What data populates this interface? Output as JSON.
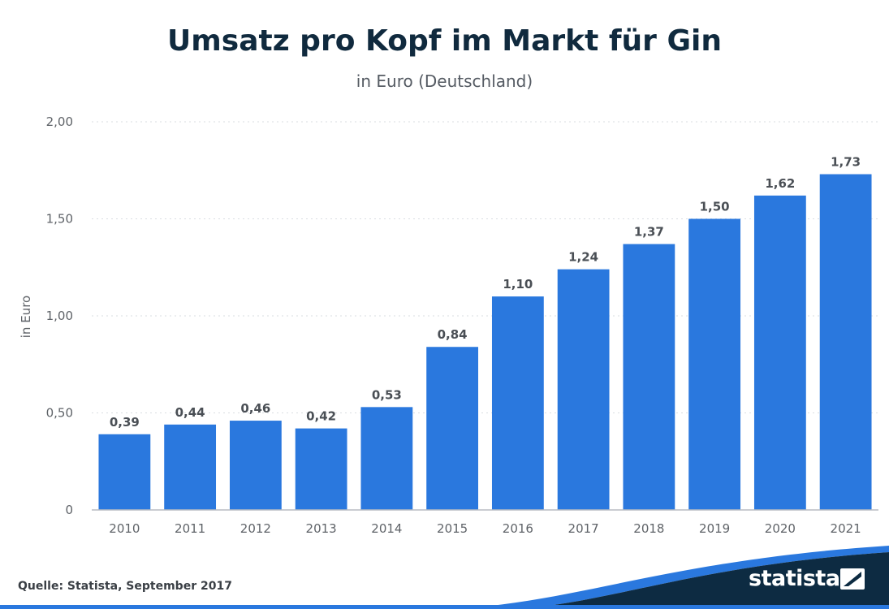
{
  "chart_data": {
    "type": "bar",
    "title": "Umsatz pro Kopf im Markt für Gin",
    "subtitle": "in Euro (Deutschland)",
    "xlabel": "",
    "ylabel": "in Euro",
    "categories": [
      "2010",
      "2011",
      "2012",
      "2013",
      "2014",
      "2015",
      "2016",
      "2017",
      "2018",
      "2019",
      "2020",
      "2021"
    ],
    "values": [
      0.39,
      0.44,
      0.46,
      0.42,
      0.53,
      0.84,
      1.1,
      1.24,
      1.37,
      1.5,
      1.62,
      1.73
    ],
    "value_labels": [
      "0,39",
      "0,44",
      "0,46",
      "0,42",
      "0,53",
      "0,84",
      "1,10",
      "1,24",
      "1,37",
      "1,50",
      "1,62",
      "1,73"
    ],
    "ylim": [
      0,
      2
    ],
    "yticks": [
      0,
      0.5,
      1.0,
      1.5,
      2.0
    ],
    "ytick_labels": [
      "0",
      "0,50",
      "1,00",
      "1,50",
      "2,00"
    ],
    "grid": true,
    "bar_color": "#2a78de"
  },
  "source": "Quelle: Statista, September 2017",
  "brand": {
    "name": "statista",
    "dark_color": "#0d2b42",
    "accent_color": "#2a78de"
  }
}
